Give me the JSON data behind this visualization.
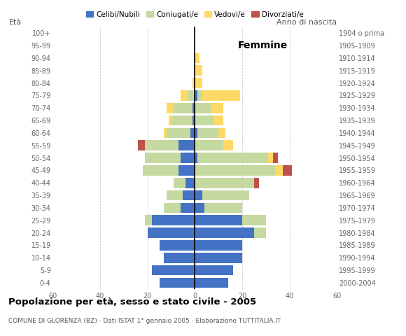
{
  "age_groups": [
    "0-4",
    "5-9",
    "10-14",
    "15-19",
    "20-24",
    "25-29",
    "30-34",
    "35-39",
    "40-44",
    "45-49",
    "50-54",
    "55-59",
    "60-64",
    "65-69",
    "70-74",
    "75-79",
    "80-84",
    "85-89",
    "90-94",
    "95-99",
    "100+"
  ],
  "birth_years": [
    "2000-2004",
    "1995-1999",
    "1990-1994",
    "1985-1989",
    "1980-1984",
    "1975-1979",
    "1970-1974",
    "1965-1969",
    "1960-1964",
    "1955-1959",
    "1950-1954",
    "1945-1949",
    "1940-1944",
    "1935-1939",
    "1930-1934",
    "1925-1929",
    "1920-1924",
    "1915-1919",
    "1910-1914",
    "1905-1909",
    "1904 o prima"
  ],
  "males": {
    "celibe": [
      15,
      18,
      13,
      15,
      20,
      18,
      6,
      5,
      4,
      7,
      6,
      7,
      2,
      1,
      1,
      0,
      0,
      0,
      0,
      0,
      0
    ],
    "coniugato": [
      0,
      0,
      0,
      0,
      0,
      3,
      7,
      7,
      5,
      15,
      15,
      14,
      10,
      9,
      8,
      3,
      0,
      0,
      0,
      0,
      0
    ],
    "vedovo": [
      0,
      0,
      0,
      0,
      0,
      0,
      0,
      0,
      0,
      0,
      0,
      0,
      1,
      1,
      3,
      3,
      1,
      0,
      0,
      0,
      0
    ],
    "divorziato": [
      0,
      0,
      0,
      0,
      0,
      0,
      0,
      0,
      0,
      0,
      0,
      3,
      0,
      0,
      0,
      0,
      0,
      0,
      0,
      0,
      0
    ]
  },
  "females": {
    "celibe": [
      14,
      16,
      20,
      20,
      25,
      20,
      4,
      3,
      0,
      0,
      1,
      0,
      1,
      0,
      0,
      1,
      0,
      0,
      0,
      0,
      0
    ],
    "coniugato": [
      0,
      0,
      0,
      0,
      5,
      10,
      16,
      20,
      25,
      34,
      30,
      12,
      9,
      8,
      7,
      2,
      0,
      0,
      0,
      0,
      0
    ],
    "vedovo": [
      0,
      0,
      0,
      0,
      0,
      0,
      0,
      0,
      0,
      3,
      2,
      4,
      3,
      4,
      5,
      16,
      3,
      3,
      2,
      0,
      0
    ],
    "divorziato": [
      0,
      0,
      0,
      0,
      0,
      0,
      0,
      0,
      2,
      4,
      2,
      0,
      0,
      0,
      0,
      0,
      0,
      0,
      0,
      0,
      0
    ]
  },
  "colors": {
    "celibe": "#4472c4",
    "coniugato": "#c6d9a0",
    "vedovo": "#ffd966",
    "divorziato": "#c0504d"
  },
  "xlim": 60,
  "title": "Popolazione per età, sesso e stato civile - 2005",
  "subtitle": "COMUNE DI GLORENZA (BZ) · Dati ISTAT 1° gennaio 2005 · Elaborazione TUTTITALIA.IT",
  "legend_labels": [
    "Celibi/Nubili",
    "Coniugati/e",
    "Vedovi/e",
    "Divorziati/e"
  ]
}
